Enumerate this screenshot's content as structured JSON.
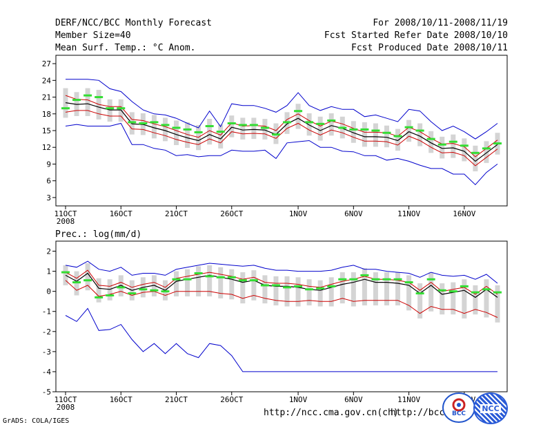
{
  "header": {
    "title": "DERF/NCC/BCC Monthly Forecast",
    "member": "Member Size=40",
    "variable": "Mean Surf. Temp.: °C Anom.",
    "period": "For 2008/10/11-2008/11/19",
    "started": "Fcst Started Refer Date 2008/10/10",
    "produced": "Fcst Produced Date 2008/10/11"
  },
  "footer": {
    "url1": "http://ncc.cma.gov.cn(ch)",
    "url2": "http://bcc.",
    "grads": "GrADS: COLA/IGES",
    "logo1_text": "BCC",
    "logo2_text": "NCC"
  },
  "colors": {
    "mean": "#000000",
    "spread": "#cc0000",
    "envelope": "#0000cc",
    "median": "#33dd33",
    "box": "#d4d4d4"
  },
  "chart_data": [
    {
      "type": "line",
      "title": "Mean Surf. Temp.: °C Anom.",
      "days": 40,
      "x_tick_labels": [
        "11OCT",
        "16OCT",
        "21OCT",
        "26OCT",
        "1NOV",
        "6NOV",
        "11NOV",
        "16NOV"
      ],
      "x_tick_days": [
        0,
        5,
        10,
        15,
        21,
        26,
        31,
        36
      ],
      "year_label": "2008",
      "y_tick_labels": [
        "3",
        "6",
        "9",
        "12",
        "15",
        "18",
        "21",
        "24",
        "27"
      ],
      "ylim": [
        1.5,
        28.5
      ],
      "series": [
        {
          "name": "mean",
          "values": [
            20.0,
            19.7,
            19.8,
            19.2,
            18.7,
            18.7,
            16.2,
            16.1,
            15.5,
            15.0,
            14.3,
            13.7,
            13.2,
            14.3,
            13.5,
            15.6,
            15.1,
            15.2,
            15.1,
            14.3,
            16.2,
            17.2,
            16.0,
            15.0,
            15.9,
            15.4,
            14.6,
            13.9,
            13.9,
            13.8,
            13.2,
            14.8,
            14.0,
            12.8,
            11.8,
            11.9,
            11.3,
            9.5,
            11.0,
            12.5
          ]
        },
        {
          "name": "upper",
          "values": [
            21.3,
            20.6,
            20.5,
            19.7,
            19.3,
            19.3,
            17.0,
            16.8,
            16.2,
            15.7,
            15.0,
            14.3,
            13.8,
            15.0,
            14.2,
            16.4,
            15.8,
            15.9,
            15.8,
            15.0,
            17.0,
            18.0,
            16.8,
            15.8,
            16.7,
            16.2,
            15.4,
            14.7,
            14.7,
            14.6,
            14.0,
            15.6,
            14.8,
            13.6,
            12.6,
            12.7,
            12.1,
            10.3,
            11.8,
            13.3
          ]
        },
        {
          "name": "lower",
          "values": [
            18.3,
            18.6,
            18.6,
            18.0,
            17.6,
            17.6,
            15.3,
            15.2,
            14.6,
            14.1,
            13.4,
            12.9,
            12.5,
            13.5,
            12.8,
            14.8,
            14.4,
            14.5,
            14.4,
            13.6,
            15.4,
            16.3,
            15.1,
            14.2,
            15.1,
            14.6,
            13.8,
            13.1,
            13.1,
            13.0,
            12.4,
            14.0,
            13.2,
            12.0,
            11.0,
            11.1,
            10.5,
            8.7,
            10.2,
            11.7
          ]
        },
        {
          "name": "max",
          "values": [
            24.2,
            24.2,
            24.2,
            24.0,
            22.5,
            22.0,
            20.2,
            18.7,
            18.0,
            17.8,
            17.2,
            16.3,
            15.5,
            18.5,
            15.7,
            19.8,
            19.5,
            19.5,
            19.0,
            18.3,
            19.5,
            21.8,
            19.5,
            18.6,
            19.3,
            18.8,
            18.8,
            17.5,
            17.8,
            17.2,
            16.6,
            18.8,
            18.5,
            16.6,
            15.0,
            15.8,
            14.8,
            13.5,
            14.8,
            16.3
          ]
        },
        {
          "name": "min",
          "values": [
            15.8,
            16.1,
            15.8,
            15.8,
            15.8,
            16.3,
            12.5,
            12.5,
            11.8,
            11.5,
            10.5,
            10.7,
            10.3,
            10.5,
            10.5,
            11.5,
            11.3,
            11.3,
            11.5,
            10.0,
            12.8,
            13.0,
            13.2,
            12.0,
            12.0,
            11.3,
            11.2,
            10.5,
            10.5,
            9.7,
            10.0,
            9.5,
            8.8,
            8.2,
            8.2,
            7.2,
            7.2,
            5.3,
            7.5,
            9.0
          ]
        },
        {
          "name": "median",
          "values": [
            19.0,
            20.5,
            21.3,
            21.0,
            19.0,
            19.0,
            16.5,
            16.3,
            16.5,
            16.0,
            15.5,
            15.2,
            14.7,
            15.8,
            14.8,
            16.3,
            16.0,
            16.0,
            15.5,
            14.3,
            16.5,
            18.5,
            16.5,
            16.2,
            16.8,
            15.5,
            15.2,
            15.2,
            15.0,
            14.6,
            14.0,
            15.6,
            15.0,
            13.5,
            12.5,
            13.0,
            12.3,
            11.0,
            11.8,
            12.7
          ]
        }
      ]
    },
    {
      "type": "line",
      "title": "Prec.: log(mm/d)",
      "days": 40,
      "x_tick_labels": [
        "11OCT",
        "16OCT",
        "21OCT",
        "26OCT",
        "1NOV",
        "6NOV",
        "11NOV",
        "16NOV"
      ],
      "x_tick_days": [
        0,
        5,
        10,
        15,
        21,
        26,
        31,
        36
      ],
      "year_label": "2008",
      "y_tick_labels": [
        "-5",
        "-4",
        "-3",
        "-2",
        "-1",
        "0",
        "1",
        "2"
      ],
      "ylim": [
        -5,
        2.5
      ],
      "series": [
        {
          "name": "mean",
          "values": [
            0.8,
            0.5,
            0.9,
            0.15,
            0.1,
            0.3,
            0.05,
            0.2,
            0.3,
            0.05,
            0.5,
            0.6,
            0.7,
            0.8,
            0.7,
            0.6,
            0.45,
            0.55,
            0.3,
            0.25,
            0.25,
            0.2,
            0.1,
            0.05,
            0.2,
            0.35,
            0.45,
            0.6,
            0.45,
            0.45,
            0.4,
            0.3,
            -0.1,
            0.3,
            -0.15,
            -0.05,
            0.05,
            -0.3,
            0.1,
            -0.3
          ]
        },
        {
          "name": "upper",
          "values": [
            0.95,
            0.65,
            1.05,
            0.3,
            0.25,
            0.45,
            0.2,
            0.35,
            0.45,
            0.2,
            0.65,
            0.75,
            0.85,
            0.95,
            0.85,
            0.75,
            0.6,
            0.7,
            0.45,
            0.4,
            0.4,
            0.35,
            0.25,
            0.2,
            0.35,
            0.5,
            0.6,
            0.75,
            0.6,
            0.6,
            0.55,
            0.45,
            0.05,
            0.45,
            0.0,
            0.1,
            0.2,
            -0.15,
            0.25,
            -0.15
          ]
        },
        {
          "name": "lower",
          "values": [
            0.55,
            0.05,
            0.3,
            -0.25,
            -0.15,
            0.0,
            -0.2,
            -0.05,
            0.0,
            -0.2,
            0.0,
            0.0,
            0.0,
            0.0,
            -0.1,
            -0.15,
            -0.35,
            -0.2,
            -0.35,
            -0.45,
            -0.5,
            -0.5,
            -0.45,
            -0.5,
            -0.5,
            -0.35,
            -0.5,
            -0.45,
            -0.45,
            -0.45,
            -0.45,
            -0.7,
            -1.1,
            -0.75,
            -0.9,
            -0.9,
            -1.1,
            -0.9,
            -1.05,
            -1.3
          ]
        },
        {
          "name": "max",
          "values": [
            1.3,
            1.2,
            1.5,
            1.1,
            1.0,
            1.2,
            0.8,
            0.9,
            0.9,
            0.8,
            1.1,
            1.2,
            1.3,
            1.4,
            1.35,
            1.3,
            1.25,
            1.3,
            1.15,
            1.05,
            1.05,
            1.0,
            1.0,
            1.0,
            1.05,
            1.2,
            1.3,
            1.1,
            1.1,
            1.0,
            0.95,
            0.9,
            0.7,
            0.95,
            0.8,
            0.75,
            0.8,
            0.6,
            0.85,
            0.4
          ]
        },
        {
          "name": "min",
          "values": [
            -1.2,
            -1.5,
            -0.85,
            -1.95,
            -1.9,
            -1.65,
            -2.4,
            -3.0,
            -2.6,
            -3.1,
            -2.6,
            -3.1,
            -3.3,
            -2.6,
            -2.7,
            -3.2,
            -4.0,
            -4.0,
            -4.0,
            -4.0,
            -4.0,
            -4.0,
            -4.0,
            -4.0,
            -4.0,
            -4.0,
            -4.0,
            -4.0,
            -4.0,
            -4.0,
            -4.0,
            -4.0,
            -4.0,
            -4.0,
            -4.0,
            -4.0,
            -4.0,
            -4.0,
            -4.0,
            -4.0
          ]
        },
        {
          "name": "median",
          "values": [
            0.95,
            0.45,
            0.55,
            -0.3,
            -0.2,
            0.2,
            -0.1,
            0.1,
            0.05,
            0.0,
            0.6,
            0.6,
            0.9,
            0.75,
            0.7,
            0.7,
            0.55,
            0.55,
            0.3,
            0.3,
            0.2,
            0.25,
            0.1,
            0.15,
            0.25,
            0.6,
            0.6,
            0.8,
            0.6,
            0.6,
            0.6,
            0.45,
            -0.1,
            0.6,
            0.05,
            0.0,
            0.25,
            -0.05,
            0.1,
            -0.05
          ]
        }
      ]
    }
  ]
}
